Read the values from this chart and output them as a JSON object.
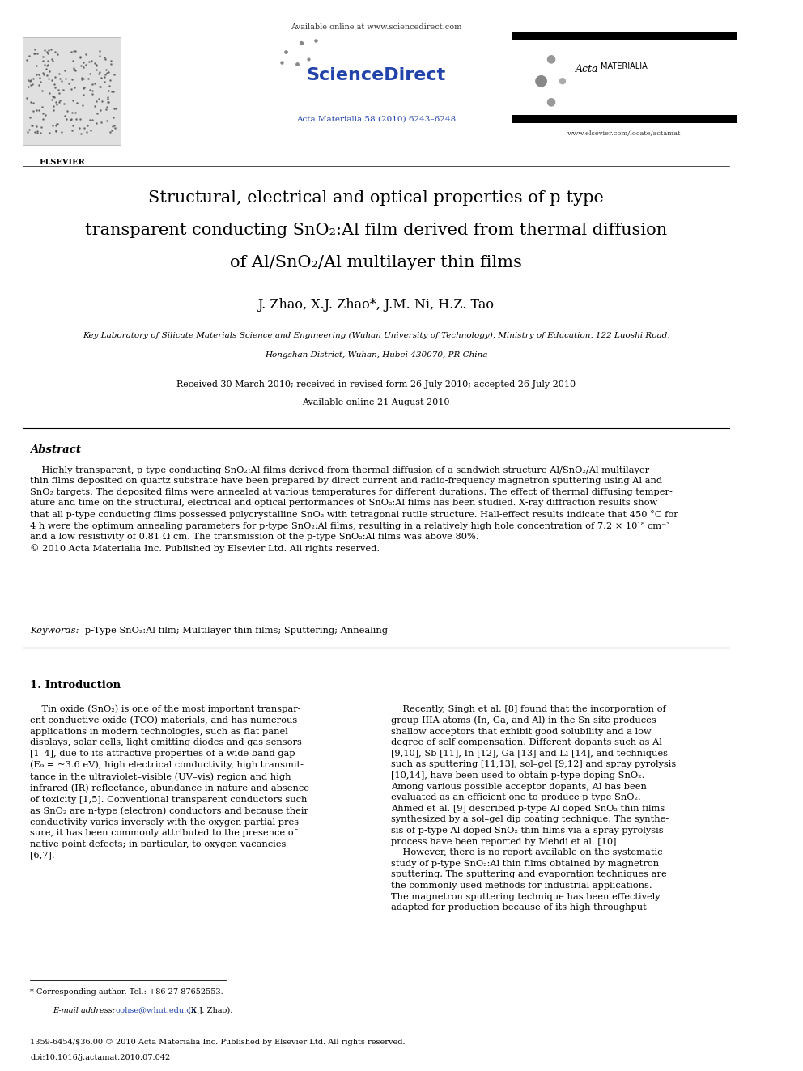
{
  "bg_color": "#ffffff",
  "page_width": 9.92,
  "page_height": 13.23,
  "header": {
    "elsevier_text": "ELSEVIER",
    "available_online": "Available online at www.sciencedirect.com",
    "sciencedirect": "ScienceDirect",
    "journal_ref": "Acta Materialia 58 (2010) 6243–6248",
    "journal_ref_color": "#2244aa",
    "acta_materialia": "Acta MATERIALIA",
    "website": "www.elsevier.com/locate/actamat"
  },
  "title_line1": "Structural, electrical and optical properties of p-type",
  "title_line2": "transparent conducting SnO₂:Al film derived from thermal diffusion",
  "title_line3": "of Al/SnO₂/Al multilayer thin films",
  "authors": "J. Zhao, X.J. Zhao*, J.M. Ni, H.Z. Tao",
  "affiliation1": "Key Laboratory of Silicate Materials Science and Engineering (Wuhan University of Technology), Ministry of Education, 122 Luoshi Road,",
  "affiliation2": "Hongshan District, Wuhan, Hubei 430070, PR China",
  "received": "Received 30 March 2010; received in revised form 26 July 2010; accepted 26 July 2010",
  "available": "Available online 21 August 2010",
  "abstract_heading": "Abstract",
  "copyright": "© 2010 Acta Materialia Inc. Published by Elsevier Ltd. All rights reserved.",
  "keywords_label": "Keywords:  ",
  "keywords_text": "p-Type SnO₂:Al film; Multilayer thin films; Sputtering; Annealing",
  "section1_heading": "1. Introduction",
  "footnote_star": "* Corresponding author. Tel.: +86 27 87652553.",
  "footnote_email_label": "E-mail address: ",
  "footnote_email_link": "ophse@whut.edu.cn",
  "footnote_email_suffix": " (X.J. Zhao).",
  "footer_left1": "1359-6454/$36.00 © 2010 Acta Materialia Inc. Published by Elsevier Ltd. All rights reserved.",
  "footer_left2": "doi:10.1016/j.actamat.2010.07.042",
  "link_color": "#2244aa",
  "text_color": "#000000"
}
